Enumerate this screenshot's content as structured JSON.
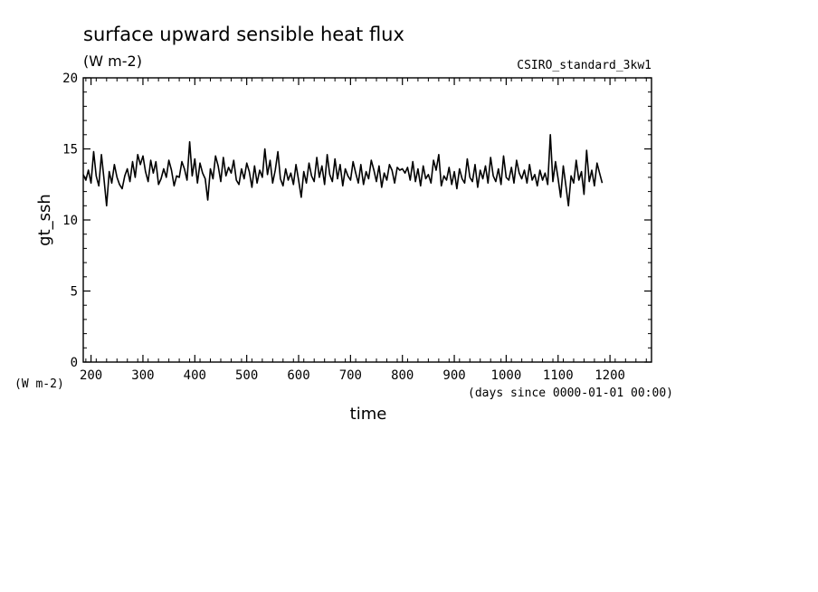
{
  "chart_data": {
    "type": "line",
    "title": "surface upward sensible heat flux",
    "title_units": "(W m-2)",
    "source_label": "CSIRO_standard_3kw1",
    "xlabel": "time",
    "x_units_note": "(days since 0000-01-01 00:00)",
    "ylabel": "gt_ssh",
    "y_units": "(W m-2)",
    "xlim": [
      185,
      1280
    ],
    "ylim": [
      0,
      20
    ],
    "x_ticks": [
      200,
      300,
      400,
      500,
      600,
      700,
      800,
      900,
      1000,
      1100,
      1200
    ],
    "y_ticks": [
      0,
      5,
      10,
      15,
      20
    ],
    "grid": false,
    "line_color": "#000000",
    "series": [
      {
        "x0": 185,
        "dx": 5,
        "values": [
          13.2,
          12.8,
          13.5,
          12.6,
          14.8,
          13.1,
          12.4,
          14.6,
          12.9,
          11.0,
          13.4,
          12.6,
          13.9,
          13.0,
          12.5,
          12.2,
          13.1,
          13.6,
          12.7,
          14.1,
          13.0,
          14.6,
          13.9,
          14.5,
          13.4,
          12.7,
          14.2,
          13.3,
          14.1,
          12.5,
          12.9,
          13.6,
          13.0,
          14.2,
          13.5,
          12.4,
          13.1,
          13.0,
          14.1,
          13.6,
          12.8,
          15.5,
          13.1,
          14.3,
          12.6,
          14.0,
          13.3,
          12.9,
          11.4,
          13.6,
          12.9,
          14.5,
          13.8,
          12.7,
          14.4,
          13.1,
          13.7,
          13.3,
          14.2,
          12.8,
          12.5,
          13.6,
          12.9,
          14.0,
          13.4,
          12.3,
          13.8,
          12.6,
          13.5,
          13.0,
          15.0,
          13.2,
          14.2,
          12.6,
          13.5,
          14.8,
          12.9,
          12.4,
          13.6,
          12.8,
          13.3,
          12.5,
          13.9,
          12.8,
          11.6,
          13.4,
          12.6,
          14.0,
          13.1,
          12.7,
          14.4,
          13.0,
          13.8,
          12.5,
          14.6,
          13.2,
          12.7,
          14.3,
          12.9,
          13.9,
          12.4,
          13.6,
          13.1,
          12.8,
          14.1,
          13.3,
          12.6,
          13.9,
          12.5,
          13.4,
          12.9,
          14.2,
          13.5,
          12.7,
          13.8,
          12.3,
          13.3,
          12.8,
          13.9,
          13.5,
          12.6,
          13.7,
          13.5,
          13.6,
          13.3,
          13.7,
          12.8,
          14.1,
          12.7,
          13.6,
          12.4,
          13.8,
          12.9,
          13.2,
          12.6,
          14.2,
          13.5,
          14.6,
          12.4,
          13.1,
          12.8,
          13.7,
          12.5,
          13.4,
          12.2,
          13.6,
          12.9,
          12.6,
          14.3,
          13.0,
          12.7,
          13.9,
          12.3,
          13.5,
          12.9,
          13.8,
          12.6,
          14.4,
          13.1,
          12.7,
          13.6,
          12.5,
          14.5,
          13.0,
          12.8,
          13.7,
          12.6,
          14.2,
          13.3,
          12.9,
          13.5,
          12.6,
          13.9,
          12.8,
          13.2,
          12.4,
          13.5,
          12.8,
          13.3,
          12.5,
          16.0,
          12.7,
          14.1,
          12.9,
          11.6,
          13.8,
          12.4,
          11.0,
          13.1,
          12.6,
          14.2,
          12.8,
          13.4,
          11.8,
          14.9,
          12.7,
          13.5,
          12.4,
          14.0,
          13.3,
          12.6
        ]
      }
    ]
  }
}
